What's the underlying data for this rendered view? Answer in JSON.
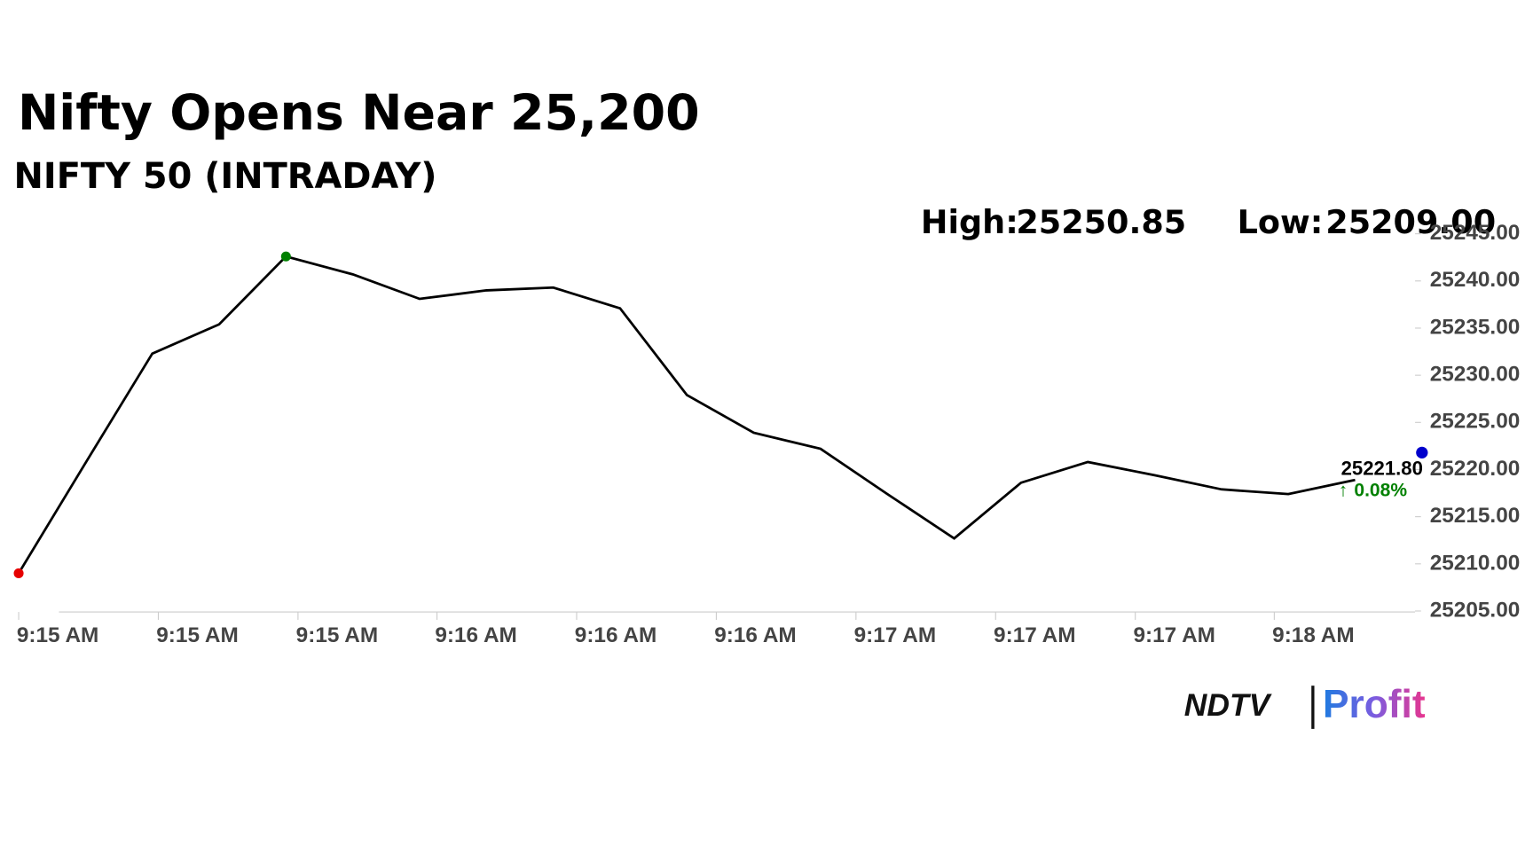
{
  "chart_data": {
    "type": "line",
    "title": "Nifty Opens Near 25,200",
    "subtitle": "NIFTY 50 (INTRADAY)",
    "high_label": "High:",
    "high": "25250.85",
    "low_label": "Low:",
    "low": "25209.00",
    "x": [
      0,
      1,
      2,
      3,
      4,
      5,
      6,
      7,
      8,
      9,
      10,
      11,
      12,
      13,
      14,
      15,
      16,
      17,
      18,
      19,
      20
    ],
    "series": [
      {
        "color": "#000000",
        "values": [
          25209,
          25220.7,
          25232.3,
          25235.4,
          25242.6,
          25240.7,
          25238.1,
          25239.0,
          25239.3,
          25237.1,
          25227.9,
          25223.9,
          25222.2,
          25217.4,
          25212.7,
          25218.6,
          25220.8,
          25219.4,
          25217.9,
          25217.4,
          25218.9
        ]
      }
    ],
    "start_color": "#e60000",
    "high_color": "#008000",
    "high_index": 4,
    "current": {
      "x": 21,
      "value": 25221.8,
      "label": "25221.80",
      "change": "0.08%",
      "color": "#0000cc",
      "change_color": "#008000"
    },
    "xlim": [
      0,
      21
    ],
    "xticks": [
      {
        "value": 0,
        "label": "9:15 AM"
      },
      {
        "value": 2.09,
        "label": "9:15 AM"
      },
      {
        "value": 4.18,
        "label": "9:15 AM"
      },
      {
        "value": 6.26,
        "label": "9:16 AM"
      },
      {
        "value": 8.35,
        "label": "9:16 AM"
      },
      {
        "value": 10.44,
        "label": "9:16 AM"
      },
      {
        "value": 12.53,
        "label": "9:17 AM"
      },
      {
        "value": 14.62,
        "label": "9:17 AM"
      },
      {
        "value": 16.71,
        "label": "9:17 AM"
      },
      {
        "value": 18.79,
        "label": "9:18 AM"
      }
    ],
    "ylim": [
      25205,
      25245
    ],
    "yticks": [
      {
        "value": 25205,
        "label": "25205.00"
      },
      {
        "value": 25210,
        "label": "25210.00"
      },
      {
        "value": 25215,
        "label": "25215.00"
      },
      {
        "value": 25220,
        "label": "25220.00"
      },
      {
        "value": 25225,
        "label": "25225.00"
      },
      {
        "value": 25230,
        "label": "25230.00"
      },
      {
        "value": 25235,
        "label": "25235.00"
      },
      {
        "value": 25240,
        "label": "25240.00"
      },
      {
        "value": 25245,
        "label": "25245.00"
      }
    ],
    "logo": {
      "brand": "NDTV",
      "product": "Profit"
    }
  }
}
